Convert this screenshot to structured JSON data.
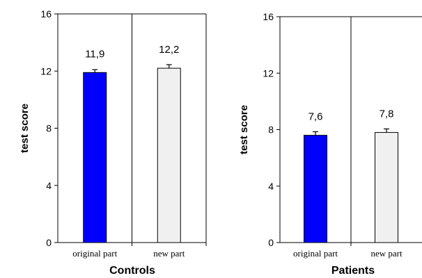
{
  "colors": {
    "bar_original": "#0000FF",
    "bar_new": "#F0F0F0",
    "axis": "#000000"
  },
  "chart_data": [
    {
      "type": "bar",
      "title": "Controls",
      "ylabel": "test score",
      "ylim": [
        0,
        16
      ],
      "yticks": [
        0,
        4,
        8,
        12,
        16
      ],
      "categories": [
        "original part",
        "new part"
      ],
      "values": [
        11.9,
        12.2
      ],
      "value_labels": [
        "11,9",
        "12,2"
      ],
      "error": [
        0.2,
        0.25
      ],
      "bar_colors": [
        "#0000FF",
        "#F0F0F0"
      ],
      "grid": false
    },
    {
      "type": "bar",
      "title": "Patients",
      "ylabel": "test score",
      "ylim": [
        0,
        16
      ],
      "yticks": [
        0,
        4,
        8,
        12,
        16
      ],
      "categories": [
        "original part",
        "new part"
      ],
      "values": [
        7.6,
        7.8
      ],
      "value_labels": [
        "7,6",
        "7,8"
      ],
      "error": [
        0.25,
        0.25
      ],
      "bar_colors": [
        "#0000FF",
        "#F0F0F0"
      ],
      "grid": false
    }
  ]
}
